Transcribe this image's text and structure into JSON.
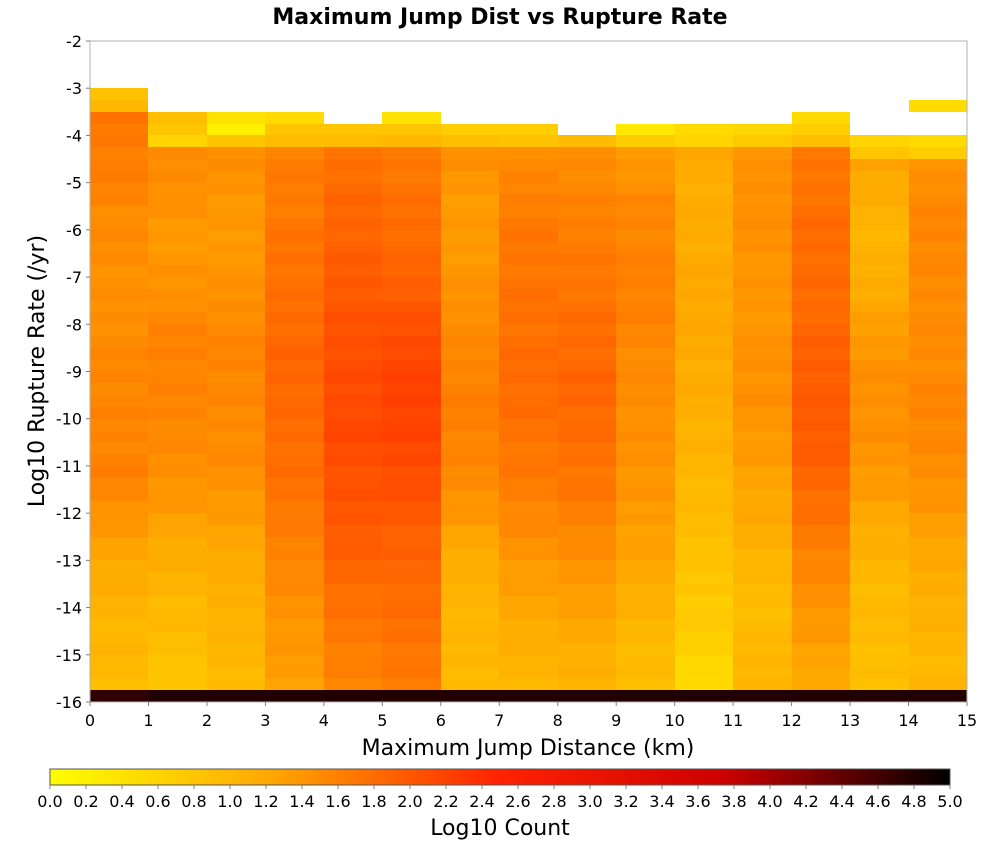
{
  "chart_data": {
    "type": "heatmap",
    "title": "Maximum Jump Dist vs Rupture Rate",
    "xlabel": "Maximum Jump Distance (km)",
    "ylabel": "Log10 Rupture Rate (/yr)",
    "xlim": [
      0,
      15
    ],
    "ylim": [
      -16,
      -2
    ],
    "x_ticks": [
      "0",
      "1",
      "2",
      "3",
      "4",
      "5",
      "6",
      "7",
      "8",
      "9",
      "10",
      "11",
      "12",
      "13",
      "14",
      "15"
    ],
    "y_ticks": [
      "-2",
      "-3",
      "-4",
      "-5",
      "-6",
      "-7",
      "-8",
      "-9",
      "-10",
      "-11",
      "-12",
      "-13",
      "-14",
      "-15",
      "-16"
    ],
    "x_bin_width": 1,
    "y_bin_height": 0.25,
    "colorbar": {
      "label": "Log10 Count",
      "range": [
        0,
        5
      ],
      "ticks": [
        "0.0",
        "0.2",
        "0.4",
        "0.6",
        "0.8",
        "1.0",
        "1.2",
        "1.4",
        "1.6",
        "1.8",
        "2.0",
        "2.2",
        "2.4",
        "2.6",
        "2.8",
        "3.0",
        "3.2",
        "3.4",
        "3.6",
        "3.8",
        "4.0",
        "4.2",
        "4.4",
        "4.6",
        "4.8",
        "5.0"
      ],
      "colors": [
        "#ffff00",
        "#ffa500",
        "#ff2200",
        "#cc0000",
        "#000000"
      ]
    },
    "columns": [
      {
        "x_start": 0,
        "y_top": -3.0,
        "top": [
          0.85,
          1.0
        ],
        "profile": [
          1.7,
          1.7,
          1.65,
          1.6,
          1.5,
          1.5,
          1.45,
          1.45,
          1.5,
          1.55,
          1.55,
          1.55,
          1.6,
          1.5,
          1.35,
          1.2,
          1.1,
          1.0,
          1.0,
          0.95
        ]
      },
      {
        "x_start": 1,
        "y_top": -3.5,
        "top": [
          0.9,
          0.8,
          0.6
        ],
        "profile": [
          1.3,
          1.45,
          1.5,
          1.45,
          1.35,
          1.4,
          1.45,
          1.55,
          1.6,
          1.55,
          1.55,
          1.5,
          1.45,
          1.35,
          1.2,
          1.1,
          1.0,
          0.95,
          0.85,
          0.75
        ]
      },
      {
        "x_start": 2,
        "y_top": -3.5,
        "top": [
          0.4,
          0.2,
          0.8
        ],
        "profile": [
          1.35,
          1.45,
          1.45,
          1.4,
          1.35,
          1.4,
          1.45,
          1.5,
          1.55,
          1.55,
          1.5,
          1.5,
          1.45,
          1.35,
          1.25,
          1.15,
          1.1,
          1.05,
          1.0,
          0.95
        ]
      },
      {
        "x_start": 3,
        "y_top": -3.5,
        "top": [
          0.5,
          0.8,
          0.95
        ],
        "profile": [
          1.55,
          1.6,
          1.65,
          1.65,
          1.7,
          1.75,
          1.75,
          1.8,
          1.85,
          1.85,
          1.8,
          1.8,
          1.75,
          1.7,
          1.6,
          1.55,
          1.45,
          1.4,
          1.35,
          1.3
        ]
      },
      {
        "x_start": 4,
        "y_top": -3.75,
        "top": [
          0.8,
          0.95
        ],
        "profile": [
          1.7,
          1.75,
          1.8,
          1.85,
          1.9,
          1.95,
          2.0,
          2.05,
          2.1,
          2.1,
          2.15,
          2.1,
          2.05,
          2.0,
          1.95,
          1.85,
          1.75,
          1.7,
          1.6,
          1.55
        ]
      },
      {
        "x_start": 5,
        "y_top": -3.5,
        "top": [
          0.4,
          0.8,
          1.0
        ],
        "profile": [
          1.6,
          1.65,
          1.7,
          1.75,
          1.8,
          1.85,
          1.95,
          2.05,
          2.15,
          2.2,
          2.2,
          2.15,
          2.1,
          2.0,
          1.9,
          1.85,
          1.8,
          1.75,
          1.7,
          1.65
        ]
      },
      {
        "x_start": 6,
        "y_top": -3.75,
        "top": [
          0.7,
          0.9
        ],
        "profile": [
          1.45,
          1.45,
          1.4,
          1.35,
          1.35,
          1.4,
          1.45,
          1.5,
          1.55,
          1.6,
          1.6,
          1.55,
          1.5,
          1.4,
          1.2,
          1.1,
          1.05,
          1.0,
          1.0,
          0.95
        ]
      },
      {
        "x_start": 7,
        "y_top": -3.75,
        "top": [
          0.7,
          0.85
        ],
        "profile": [
          1.45,
          1.5,
          1.55,
          1.65,
          1.7,
          1.7,
          1.75,
          1.75,
          1.8,
          1.8,
          1.75,
          1.7,
          1.65,
          1.55,
          1.45,
          1.35,
          1.25,
          1.15,
          1.05,
          1.0
        ]
      },
      {
        "x_start": 8,
        "y_top": -4.0,
        "top": [
          0.95
        ],
        "profile": [
          1.45,
          1.5,
          1.55,
          1.6,
          1.65,
          1.7,
          1.75,
          1.8,
          1.85,
          1.85,
          1.8,
          1.75,
          1.7,
          1.6,
          1.5,
          1.4,
          1.3,
          1.2,
          1.1,
          1.05
        ]
      },
      {
        "x_start": 9,
        "y_top": -3.75,
        "top": [
          0.3,
          0.7
        ],
        "profile": [
          1.35,
          1.35,
          1.45,
          1.55,
          1.55,
          1.6,
          1.6,
          1.55,
          1.5,
          1.5,
          1.45,
          1.45,
          1.4,
          1.35,
          1.3,
          1.2,
          1.1,
          1.0,
          0.95,
          0.9
        ]
      },
      {
        "x_start": 10,
        "y_top": -3.75,
        "top": [
          0.5,
          0.6
        ],
        "profile": [
          1.25,
          1.2,
          1.15,
          1.15,
          1.15,
          1.2,
          1.2,
          1.2,
          1.15,
          1.15,
          1.1,
          1.05,
          1.0,
          0.95,
          0.9,
          0.8,
          0.75,
          0.7,
          0.6,
          0.45
        ]
      },
      {
        "x_start": 11,
        "y_top": -3.75,
        "top": [
          0.55,
          0.75
        ],
        "profile": [
          1.35,
          1.4,
          1.45,
          1.45,
          1.45,
          1.4,
          1.4,
          1.4,
          1.45,
          1.45,
          1.4,
          1.35,
          1.25,
          1.2,
          1.1,
          1.0,
          0.95,
          0.95,
          1.0,
          1.05
        ]
      },
      {
        "x_start": 12,
        "y_top": -3.5,
        "top": [
          0.5,
          0.7,
          0.9
        ],
        "profile": [
          1.6,
          1.65,
          1.7,
          1.75,
          1.8,
          1.8,
          1.8,
          1.85,
          1.9,
          1.95,
          1.95,
          1.95,
          1.85,
          1.75,
          1.65,
          1.55,
          1.45,
          1.35,
          1.25,
          1.2
        ]
      },
      {
        "x_start": 13,
        "y_top": -4.0,
        "top": [
          0.6,
          0.8
        ],
        "profile": [
          1.2,
          1.25,
          1.15,
          1.05,
          1.05,
          1.15,
          1.25,
          1.35,
          1.45,
          1.45,
          1.45,
          1.4,
          1.35,
          1.2,
          1.1,
          1.0,
          0.95,
          0.95,
          0.9,
          0.9
        ]
      },
      {
        "x_start": 14,
        "y_top": -4.0,
        "top": [
          0.5,
          0.7
        ],
        "profile": [
          1.4,
          1.45,
          1.5,
          1.55,
          1.55,
          1.5,
          1.5,
          1.5,
          1.5,
          1.55,
          1.55,
          1.5,
          1.45,
          1.35,
          1.25,
          1.15,
          1.1,
          1.05,
          1.0,
          1.0
        ]
      }
    ],
    "isolated_cells": [
      {
        "x_start": 14,
        "y_low": -3.5,
        "y_high": -3.25,
        "value": 0.5
      }
    ],
    "floor_row": {
      "y_low": -16.0,
      "y_high": -15.75,
      "values": [
        4.7,
        4.8,
        4.8,
        4.8,
        4.8,
        4.8,
        4.8,
        4.8,
        4.8,
        4.8,
        4.8,
        4.8,
        4.8,
        4.8,
        4.8
      ]
    }
  }
}
